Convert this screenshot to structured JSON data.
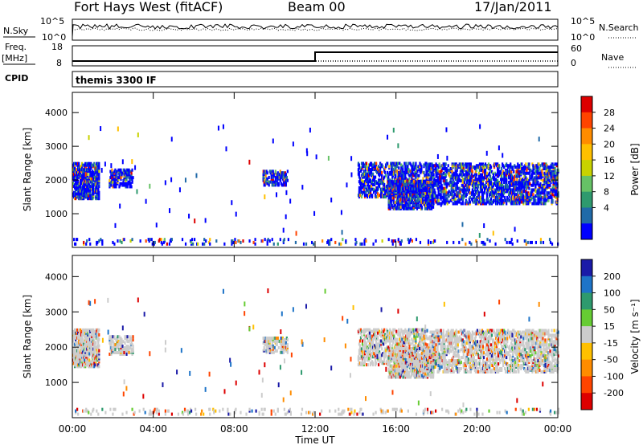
{
  "header": {
    "station": "Fort Hays West (fitACF)",
    "beam": "Beam 00",
    "date": "17/Jan/2011"
  },
  "top_panels": {
    "nsky_label": "N.Sky",
    "nsky_ticks": [
      "10^5",
      "10^0"
    ],
    "nsearch_label": "N.Search",
    "nsearch_ticks": [
      "10^5",
      "10^0"
    ],
    "freq_label": "Freq.",
    "freq_unit": "[MHz]",
    "freq_ticks": [
      "18",
      "8"
    ],
    "nave_label": "Nave",
    "nave_ticks": [
      "60",
      "0"
    ],
    "cpid_label": "CPID",
    "cpid_value": "themis 3300 IF",
    "freq_series_mhz": {
      "x_hours": [
        0,
        12,
        12,
        24
      ],
      "y": [
        10,
        10,
        15.5,
        15.5
      ]
    },
    "nave_level": 4
  },
  "chart_data": [
    {
      "type": "heatmap",
      "name": "power",
      "ylabel": "Slant Range [km]",
      "xlabel": "Time UT",
      "x_ticks": [
        "00:00",
        "04:00",
        "08:00",
        "12:00",
        "16:00",
        "20:00",
        "00:00"
      ],
      "xlim_hours": [
        0,
        24
      ],
      "y_ticks": [
        1000,
        2000,
        3000,
        4000
      ],
      "ylim": [
        0,
        4600
      ],
      "colorbar": {
        "label": "Power [dB]",
        "ticks": [
          "28",
          "24",
          "20",
          "16",
          "12",
          "8",
          "4"
        ],
        "colors": [
          "#dd0000",
          "#ff4400",
          "#ff8c00",
          "#ffc000",
          "#c8d200",
          "#66c266",
          "#2e9a6e",
          "#206aa8",
          "#0000ff"
        ]
      }
    },
    {
      "type": "heatmap",
      "name": "velocity",
      "ylabel": "Slant Range [km]",
      "xlabel": "Time UT",
      "x_ticks": [
        "00:00",
        "04:00",
        "08:00",
        "12:00",
        "16:00",
        "20:00",
        "00:00"
      ],
      "xlim_hours": [
        0,
        24
      ],
      "y_ticks": [
        1000,
        2000,
        3000,
        4000
      ],
      "ylim": [
        0,
        4600
      ],
      "colorbar": {
        "label": "Velocity [m s⁻¹]",
        "ticks": [
          "200",
          "100",
          "50",
          "15",
          "-15",
          "-50",
          "-100",
          "-200"
        ],
        "colors": [
          "#1a1aa8",
          "#1e74c8",
          "#2e9a6e",
          "#66cc33",
          "#cccccc",
          "#ffc000",
          "#ff8c00",
          "#ff4400",
          "#dd0000"
        ]
      }
    }
  ],
  "scatter_regions": [
    {
      "t0": 0.0,
      "t1": 1.3,
      "r0": 1450,
      "r1": 2500,
      "density": 0.55
    },
    {
      "t0": 1.8,
      "t1": 3.0,
      "r0": 1800,
      "r1": 2300,
      "density": 0.35
    },
    {
      "t0": 9.4,
      "t1": 10.6,
      "r0": 1850,
      "r1": 2300,
      "density": 0.45
    },
    {
      "t0": 14.1,
      "t1": 17.5,
      "r0": 1500,
      "r1": 2500,
      "density": 0.35
    },
    {
      "t0": 15.6,
      "t1": 17.8,
      "r0": 1150,
      "r1": 2000,
      "density": 0.5
    },
    {
      "t0": 17.5,
      "t1": 24.0,
      "r0": 1300,
      "r1": 2500,
      "density": 0.35
    },
    {
      "t0": 0.0,
      "t1": 24.0,
      "r0": 100,
      "r1": 250,
      "density": 0.08
    }
  ]
}
